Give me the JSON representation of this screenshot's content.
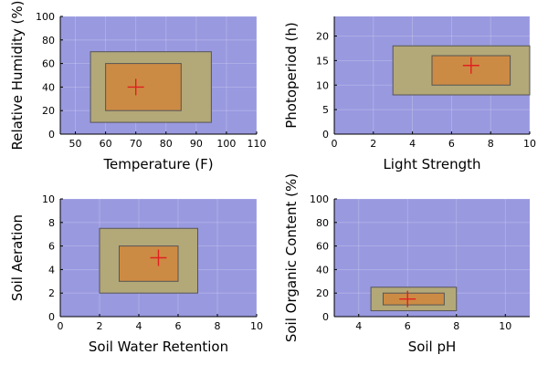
{
  "colors": {
    "background": "#9999e0",
    "outer_rect": "#b3a878",
    "inner_rect": "#cc8b44",
    "rect_stroke": "#555555",
    "marker": "#e02020",
    "grid": "#ffffff"
  },
  "chart_data": [
    {
      "type": "range-rectangles",
      "xlabel": "Temperature (F)",
      "ylabel": "Relative Humidity (%)",
      "xlim": [
        45,
        110
      ],
      "ylim": [
        0,
        100
      ],
      "xticks": [
        50,
        60,
        70,
        80,
        90,
        100,
        110
      ],
      "yticks": [
        0,
        20,
        40,
        60,
        80,
        100
      ],
      "outer_range": {
        "x": [
          55,
          95
        ],
        "y": [
          10,
          70
        ]
      },
      "inner_range": {
        "x": [
          60,
          85
        ],
        "y": [
          20,
          60
        ]
      },
      "marker": {
        "x": 70,
        "y": 40
      },
      "grid": true
    },
    {
      "type": "range-rectangles",
      "xlabel": "Light Strength",
      "ylabel": "Photoperiod (h)",
      "xlim": [
        0,
        10
      ],
      "ylim": [
        0,
        24
      ],
      "xticks": [
        0,
        2,
        4,
        6,
        8,
        10
      ],
      "yticks": [
        0,
        5,
        10,
        15,
        20
      ],
      "outer_range": {
        "x": [
          3,
          10
        ],
        "y": [
          8,
          18
        ]
      },
      "inner_range": {
        "x": [
          5,
          9
        ],
        "y": [
          10,
          16
        ]
      },
      "marker": {
        "x": 7,
        "y": 14
      },
      "grid": true
    },
    {
      "type": "range-rectangles",
      "xlabel": "Soil Water Retention",
      "ylabel": "Soil Aeration",
      "xlim": [
        0,
        10
      ],
      "ylim": [
        0,
        10
      ],
      "xticks": [
        0,
        2,
        4,
        6,
        8,
        10
      ],
      "yticks": [
        0,
        2,
        4,
        6,
        8,
        10
      ],
      "outer_range": {
        "x": [
          2,
          7
        ],
        "y": [
          2,
          7.5
        ]
      },
      "inner_range": {
        "x": [
          3,
          6
        ],
        "y": [
          3,
          6
        ]
      },
      "marker": {
        "x": 5,
        "y": 5
      },
      "grid": true
    },
    {
      "type": "range-rectangles",
      "xlabel": "Soil pH",
      "ylabel": "Soil Organic Content (%)",
      "xlim": [
        3,
        11
      ],
      "ylim": [
        0,
        100
      ],
      "xticks": [
        4,
        6,
        8,
        10
      ],
      "yticks": [
        0,
        20,
        40,
        60,
        80,
        100
      ],
      "outer_range": {
        "x": [
          4.5,
          8
        ],
        "y": [
          5,
          25
        ]
      },
      "inner_range": {
        "x": [
          5,
          7.5
        ],
        "y": [
          10,
          20
        ]
      },
      "marker": {
        "x": 6,
        "y": 15
      },
      "grid": true
    }
  ]
}
